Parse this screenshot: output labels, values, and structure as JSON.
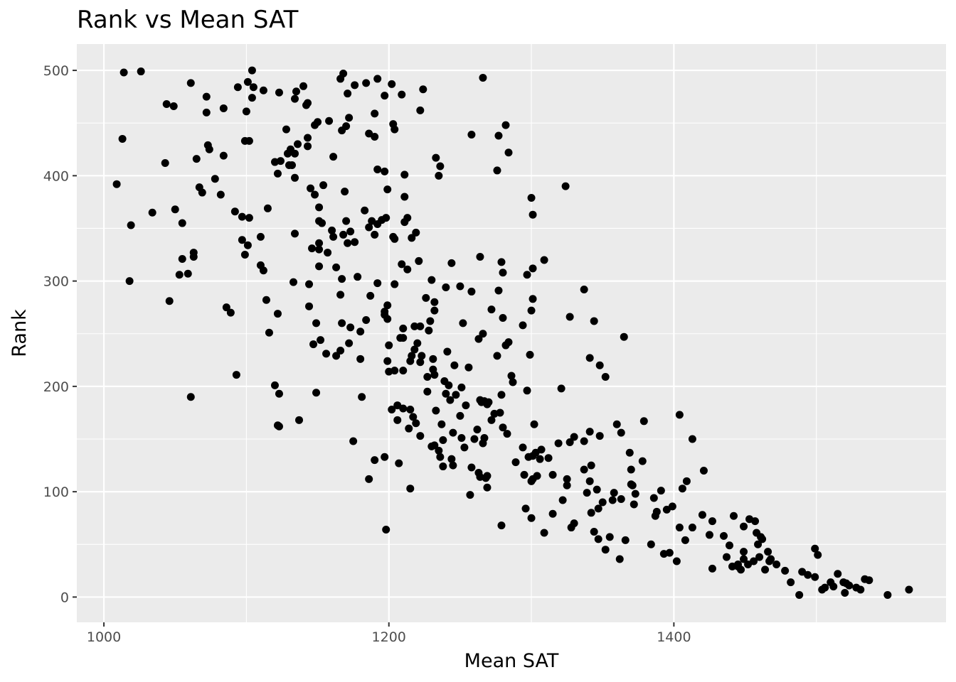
{
  "chart_data": {
    "type": "scatter",
    "title": "Rank vs Mean SAT",
    "xlabel": "Mean SAT",
    "ylabel": "Rank",
    "xlim": [
      981,
      1591
    ],
    "ylim": [
      -24,
      525
    ],
    "x_ticks": [
      1000,
      1200,
      1400
    ],
    "y_ticks": [
      0,
      100,
      200,
      300,
      400,
      500
    ],
    "grid": true,
    "legend": "none",
    "colors": {
      "panel": "#ebebeb",
      "grid": "#ffffff",
      "point": "#000000"
    },
    "points": [
      [
        1014,
        498
      ],
      [
        1026,
        499
      ],
      [
        1104,
        500
      ],
      [
        1168,
        497
      ],
      [
        1166,
        492
      ],
      [
        1192,
        492
      ],
      [
        1266,
        493
      ],
      [
        1101,
        489
      ],
      [
        1061,
        488
      ],
      [
        1094,
        484
      ],
      [
        1105,
        484
      ],
      [
        1140,
        485
      ],
      [
        1176,
        486
      ],
      [
        1184,
        488
      ],
      [
        1202,
        487
      ],
      [
        1112,
        481
      ],
      [
        1123,
        479
      ],
      [
        1135,
        480
      ],
      [
        1171,
        478
      ],
      [
        1197,
        476
      ],
      [
        1209,
        477
      ],
      [
        1224,
        482
      ],
      [
        1072,
        475
      ],
      [
        1104,
        474
      ],
      [
        1134,
        473
      ],
      [
        1143,
        469
      ],
      [
        1142,
        467
      ],
      [
        1049,
        466
      ],
      [
        1044,
        468
      ],
      [
        1084,
        464
      ],
      [
        1100,
        461
      ],
      [
        1072,
        460
      ],
      [
        1222,
        462
      ],
      [
        1190,
        459
      ],
      [
        1172,
        455
      ],
      [
        1158,
        452
      ],
      [
        1150,
        451
      ],
      [
        1148,
        448
      ],
      [
        1170,
        447
      ],
      [
        1167,
        443
      ],
      [
        1203,
        449
      ],
      [
        1204,
        444
      ],
      [
        1282,
        448
      ],
      [
        1186,
        440
      ],
      [
        1190,
        437
      ],
      [
        1258,
        439
      ],
      [
        1277,
        438
      ],
      [
        1128,
        444
      ],
      [
        1013,
        435
      ],
      [
        1099,
        433
      ],
      [
        1102,
        433
      ],
      [
        1143,
        436
      ],
      [
        1073,
        429
      ],
      [
        1074,
        425
      ],
      [
        1131,
        425
      ],
      [
        1136,
        430
      ],
      [
        1143,
        428
      ],
      [
        1129,
        421
      ],
      [
        1134,
        421
      ],
      [
        1284,
        422
      ],
      [
        1084,
        419
      ],
      [
        1065,
        416
      ],
      [
        1161,
        418
      ],
      [
        1233,
        417
      ],
      [
        1120,
        413
      ],
      [
        1124,
        414
      ],
      [
        1130,
        410
      ],
      [
        1132,
        410
      ],
      [
        1043,
        412
      ],
      [
        1236,
        409
      ],
      [
        1235,
        400
      ],
      [
        1192,
        406
      ],
      [
        1197,
        404
      ],
      [
        1211,
        401
      ],
      [
        1276,
        405
      ],
      [
        1122,
        402
      ],
      [
        1134,
        398
      ],
      [
        1078,
        397
      ],
      [
        1009,
        392
      ],
      [
        1154,
        391
      ],
      [
        1145,
        388
      ],
      [
        1199,
        387
      ],
      [
        1324,
        390
      ],
      [
        1067,
        389
      ],
      [
        1069,
        384
      ],
      [
        1169,
        385
      ],
      [
        1082,
        382
      ],
      [
        1148,
        382
      ],
      [
        1211,
        380
      ],
      [
        1300,
        379
      ],
      [
        1034,
        365
      ],
      [
        1050,
        368
      ],
      [
        1115,
        369
      ],
      [
        1151,
        370
      ],
      [
        1183,
        367
      ],
      [
        1092,
        366
      ],
      [
        1198,
        360
      ],
      [
        1301,
        363
      ],
      [
        1019,
        353
      ],
      [
        1055,
        355
      ],
      [
        1097,
        361
      ],
      [
        1102,
        360
      ],
      [
        1151,
        357
      ],
      [
        1153,
        355
      ],
      [
        1170,
        357
      ],
      [
        1188,
        357
      ],
      [
        1195,
        358
      ],
      [
        1213,
        360
      ],
      [
        1192,
        354
      ],
      [
        1211,
        356
      ],
      [
        1173,
        347
      ],
      [
        1168,
        344
      ],
      [
        1186,
        351
      ],
      [
        1190,
        344
      ],
      [
        1219,
        346
      ],
      [
        1160,
        348
      ],
      [
        1161,
        342
      ],
      [
        1171,
        336
      ],
      [
        1151,
        336
      ],
      [
        1176,
        337
      ],
      [
        1110,
        342
      ],
      [
        1097,
        339
      ],
      [
        1101,
        334
      ],
      [
        1134,
        345
      ],
      [
        1203,
        342
      ],
      [
        1204,
        340
      ],
      [
        1216,
        341
      ],
      [
        1146,
        331
      ],
      [
        1151,
        330
      ],
      [
        1157,
        327
      ],
      [
        1063,
        327
      ],
      [
        1063,
        323
      ],
      [
        1099,
        325
      ],
      [
        1055,
        321
      ],
      [
        1264,
        323
      ],
      [
        1059,
        307
      ],
      [
        1053,
        306
      ],
      [
        1110,
        315
      ],
      [
        1112,
        310
      ],
      [
        1151,
        314
      ],
      [
        1163,
        313
      ],
      [
        1209,
        316
      ],
      [
        1221,
        319
      ],
      [
        1279,
        318
      ],
      [
        1213,
        311
      ],
      [
        1280,
        308
      ],
      [
        1244,
        317
      ],
      [
        1309,
        320
      ],
      [
        1297,
        306
      ],
      [
        1301,
        312
      ],
      [
        1018,
        300
      ],
      [
        1167,
        302
      ],
      [
        1178,
        304
      ],
      [
        1230,
        301
      ],
      [
        1133,
        299
      ],
      [
        1144,
        297
      ],
      [
        1192,
        298
      ],
      [
        1204,
        297
      ],
      [
        1240,
        294
      ],
      [
        1250,
        295
      ],
      [
        1258,
        290
      ],
      [
        1277,
        291
      ],
      [
        1337,
        292
      ],
      [
        1166,
        287
      ],
      [
        1187,
        286
      ],
      [
        1226,
        284
      ],
      [
        1301,
        283
      ],
      [
        1046,
        281
      ],
      [
        1114,
        282
      ],
      [
        1232,
        280
      ],
      [
        1232,
        272
      ],
      [
        1300,
        272
      ],
      [
        1144,
        276
      ],
      [
        1086,
        275
      ],
      [
        1089,
        270
      ],
      [
        1122,
        269
      ],
      [
        1197,
        271
      ],
      [
        1199,
        277
      ],
      [
        1272,
        273
      ],
      [
        1280,
        265
      ],
      [
        1327,
        266
      ],
      [
        1344,
        262
      ],
      [
        1229,
        262
      ],
      [
        1197,
        268
      ],
      [
        1199,
        264
      ],
      [
        1149,
        260
      ],
      [
        1167,
        260
      ],
      [
        1222,
        257
      ],
      [
        1252,
        260
      ],
      [
        1210,
        255
      ],
      [
        1218,
        257
      ],
      [
        1228,
        253
      ],
      [
        1180,
        252
      ],
      [
        1184,
        263
      ],
      [
        1173,
        256
      ],
      [
        1116,
        251
      ],
      [
        1266,
        250
      ],
      [
        1294,
        258
      ],
      [
        1365,
        247
      ],
      [
        1210,
        246
      ],
      [
        1263,
        245
      ],
      [
        1172,
        241
      ],
      [
        1220,
        241
      ],
      [
        1200,
        239
      ],
      [
        1152,
        244
      ],
      [
        1147,
        240
      ],
      [
        1218,
        235
      ],
      [
        1166,
        234
      ],
      [
        1156,
        231
      ],
      [
        1180,
        226
      ],
      [
        1199,
        224
      ],
      [
        1222,
        223
      ],
      [
        1282,
        239
      ],
      [
        1284,
        242
      ],
      [
        1241,
        233
      ],
      [
        1163,
        229
      ],
      [
        1231,
        226
      ],
      [
        1246,
        220
      ],
      [
        1216,
        229
      ],
      [
        1223,
        229
      ],
      [
        1276,
        229
      ],
      [
        1299,
        230
      ],
      [
        1208,
        246
      ],
      [
        1215,
        224
      ],
      [
        1341,
        227
      ],
      [
        1348,
        220
      ],
      [
        1286,
        210
      ],
      [
        1352,
        209
      ],
      [
        1227,
        209
      ],
      [
        1239,
        205
      ],
      [
        1200,
        214
      ],
      [
        1204,
        215
      ],
      [
        1210,
        215
      ],
      [
        1231,
        216
      ],
      [
        1242,
        201
      ],
      [
        1251,
        199
      ],
      [
        1256,
        218
      ],
      [
        1287,
        204
      ],
      [
        1232,
        211
      ],
      [
        1093,
        211
      ],
      [
        1149,
        194
      ],
      [
        1120,
        201
      ],
      [
        1123,
        193
      ],
      [
        1061,
        190
      ],
      [
        1181,
        190
      ],
      [
        1227,
        195
      ],
      [
        1240,
        193
      ],
      [
        1247,
        192
      ],
      [
        1264,
        187
      ],
      [
        1270,
        185
      ],
      [
        1279,
        192
      ],
      [
        1297,
        196
      ],
      [
        1202,
        178
      ],
      [
        1215,
        178
      ],
      [
        1206,
        182
      ],
      [
        1210,
        179
      ],
      [
        1243,
        187
      ],
      [
        1254,
        182
      ],
      [
        1265,
        185
      ],
      [
        1267,
        186
      ],
      [
        1269,
        183
      ],
      [
        1274,
        174
      ],
      [
        1321,
        198
      ],
      [
        1206,
        168
      ],
      [
        1217,
        171
      ],
      [
        1219,
        165
      ],
      [
        1214,
        160
      ],
      [
        1233,
        177
      ],
      [
        1237,
        164
      ],
      [
        1251,
        151
      ],
      [
        1267,
        151
      ],
      [
        1266,
        146
      ],
      [
        1245,
        156
      ],
      [
        1280,
        161
      ],
      [
        1283,
        155
      ],
      [
        1302,
        164
      ],
      [
        1272,
        168
      ],
      [
        1278,
        175
      ],
      [
        1250,
        172
      ],
      [
        1222,
        153
      ],
      [
        1232,
        144
      ],
      [
        1238,
        149
      ],
      [
        1230,
        143
      ],
      [
        1235,
        139
      ],
      [
        1236,
        133
      ],
      [
        1244,
        131
      ],
      [
        1245,
        125
      ],
      [
        1253,
        142
      ],
      [
        1260,
        150
      ],
      [
        1262,
        159
      ],
      [
        1341,
        157
      ],
      [
        1348,
        153
      ],
      [
        1360,
        164
      ],
      [
        1363,
        156
      ],
      [
        1379,
        167
      ],
      [
        1404,
        173
      ],
      [
        1413,
        150
      ],
      [
        1327,
        147
      ],
      [
        1330,
        152
      ],
      [
        1337,
        148
      ],
      [
        1319,
        146
      ],
      [
        1307,
        140
      ],
      [
        1303,
        137
      ],
      [
        1306,
        131
      ],
      [
        1312,
        132
      ],
      [
        1298,
        133
      ],
      [
        1301,
        134
      ],
      [
        1289,
        128
      ],
      [
        1294,
        142
      ],
      [
        1238,
        124
      ],
      [
        1258,
        123
      ],
      [
        1263,
        118
      ],
      [
        1264,
        114
      ],
      [
        1268,
        113
      ],
      [
        1269,
        115
      ],
      [
        1257,
        97
      ],
      [
        1269,
        104
      ],
      [
        1197,
        133
      ],
      [
        1190,
        130
      ],
      [
        1186,
        112
      ],
      [
        1215,
        103
      ],
      [
        1207,
        127
      ],
      [
        1175,
        148
      ],
      [
        1122,
        163
      ],
      [
        1137,
        168
      ],
      [
        1123,
        162
      ],
      [
        1304,
        115
      ],
      [
        1315,
        116
      ],
      [
        1295,
        116
      ],
      [
        1301,
        112
      ],
      [
        1300,
        110
      ],
      [
        1315,
        79
      ],
      [
        1322,
        92
      ],
      [
        1325,
        112
      ],
      [
        1325,
        106
      ],
      [
        1337,
        121
      ],
      [
        1342,
        125
      ],
      [
        1341,
        110
      ],
      [
        1339,
        99
      ],
      [
        1342,
        80
      ],
      [
        1347,
        84
      ],
      [
        1350,
        90
      ],
      [
        1357,
        92
      ],
      [
        1358,
        99
      ],
      [
        1363,
        93
      ],
      [
        1370,
        107
      ],
      [
        1371,
        106
      ],
      [
        1372,
        88
      ],
      [
        1373,
        98
      ],
      [
        1370,
        121
      ],
      [
        1369,
        137
      ],
      [
        1378,
        129
      ],
      [
        1386,
        94
      ],
      [
        1387,
        77
      ],
      [
        1388,
        81
      ],
      [
        1391,
        101
      ],
      [
        1395,
        83
      ],
      [
        1399,
        86
      ],
      [
        1406,
        103
      ],
      [
        1409,
        110
      ],
      [
        1413,
        66
      ],
      [
        1408,
        54
      ],
      [
        1404,
        66
      ],
      [
        1420,
        78
      ],
      [
        1421,
        120
      ],
      [
        1425,
        59
      ],
      [
        1427,
        72
      ],
      [
        1435,
        58
      ],
      [
        1439,
        49
      ],
      [
        1442,
        77
      ],
      [
        1449,
        67
      ],
      [
        1453,
        74
      ],
      [
        1457,
        72
      ],
      [
        1458,
        61
      ],
      [
        1461,
        57
      ],
      [
        1466,
        43
      ],
      [
        1468,
        36
      ],
      [
        1472,
        31
      ],
      [
        1478,
        25
      ],
      [
        1482,
        14
      ],
      [
        1490,
        24
      ],
      [
        1494,
        21
      ],
      [
        1499,
        19
      ],
      [
        1499,
        46
      ],
      [
        1501,
        40
      ],
      [
        1504,
        7
      ],
      [
        1506,
        9
      ],
      [
        1510,
        14
      ],
      [
        1512,
        10
      ],
      [
        1515,
        22
      ],
      [
        1519,
        14
      ],
      [
        1521,
        13
      ],
      [
        1523,
        11
      ],
      [
        1520,
        4
      ],
      [
        1528,
        9
      ],
      [
        1531,
        7
      ],
      [
        1534,
        17
      ],
      [
        1537,
        16
      ],
      [
        1550,
        2
      ],
      [
        1565,
        7
      ],
      [
        1488,
        2
      ],
      [
        1296,
        84
      ],
      [
        1300,
        75
      ],
      [
        1309,
        61
      ],
      [
        1328,
        66
      ],
      [
        1330,
        70
      ],
      [
        1344,
        62
      ],
      [
        1347,
        55
      ],
      [
        1355,
        57
      ],
      [
        1362,
        36
      ],
      [
        1366,
        54
      ],
      [
        1384,
        50
      ],
      [
        1393,
        41
      ],
      [
        1397,
        42
      ],
      [
        1402,
        34
      ],
      [
        1427,
        27
      ],
      [
        1437,
        38
      ],
      [
        1441,
        29
      ],
      [
        1445,
        31
      ],
      [
        1447,
        26
      ],
      [
        1449,
        43
      ],
      [
        1452,
        31
      ],
      [
        1456,
        34
      ],
      [
        1460,
        38
      ],
      [
        1279,
        68
      ],
      [
        1198,
        64
      ],
      [
        1346,
        102
      ],
      [
        1352,
        45
      ],
      [
        1449,
        36
      ],
      [
        1445,
        29
      ],
      [
        1459,
        50
      ],
      [
        1462,
        55
      ],
      [
        1467,
        34
      ],
      [
        1464,
        26
      ]
    ]
  }
}
